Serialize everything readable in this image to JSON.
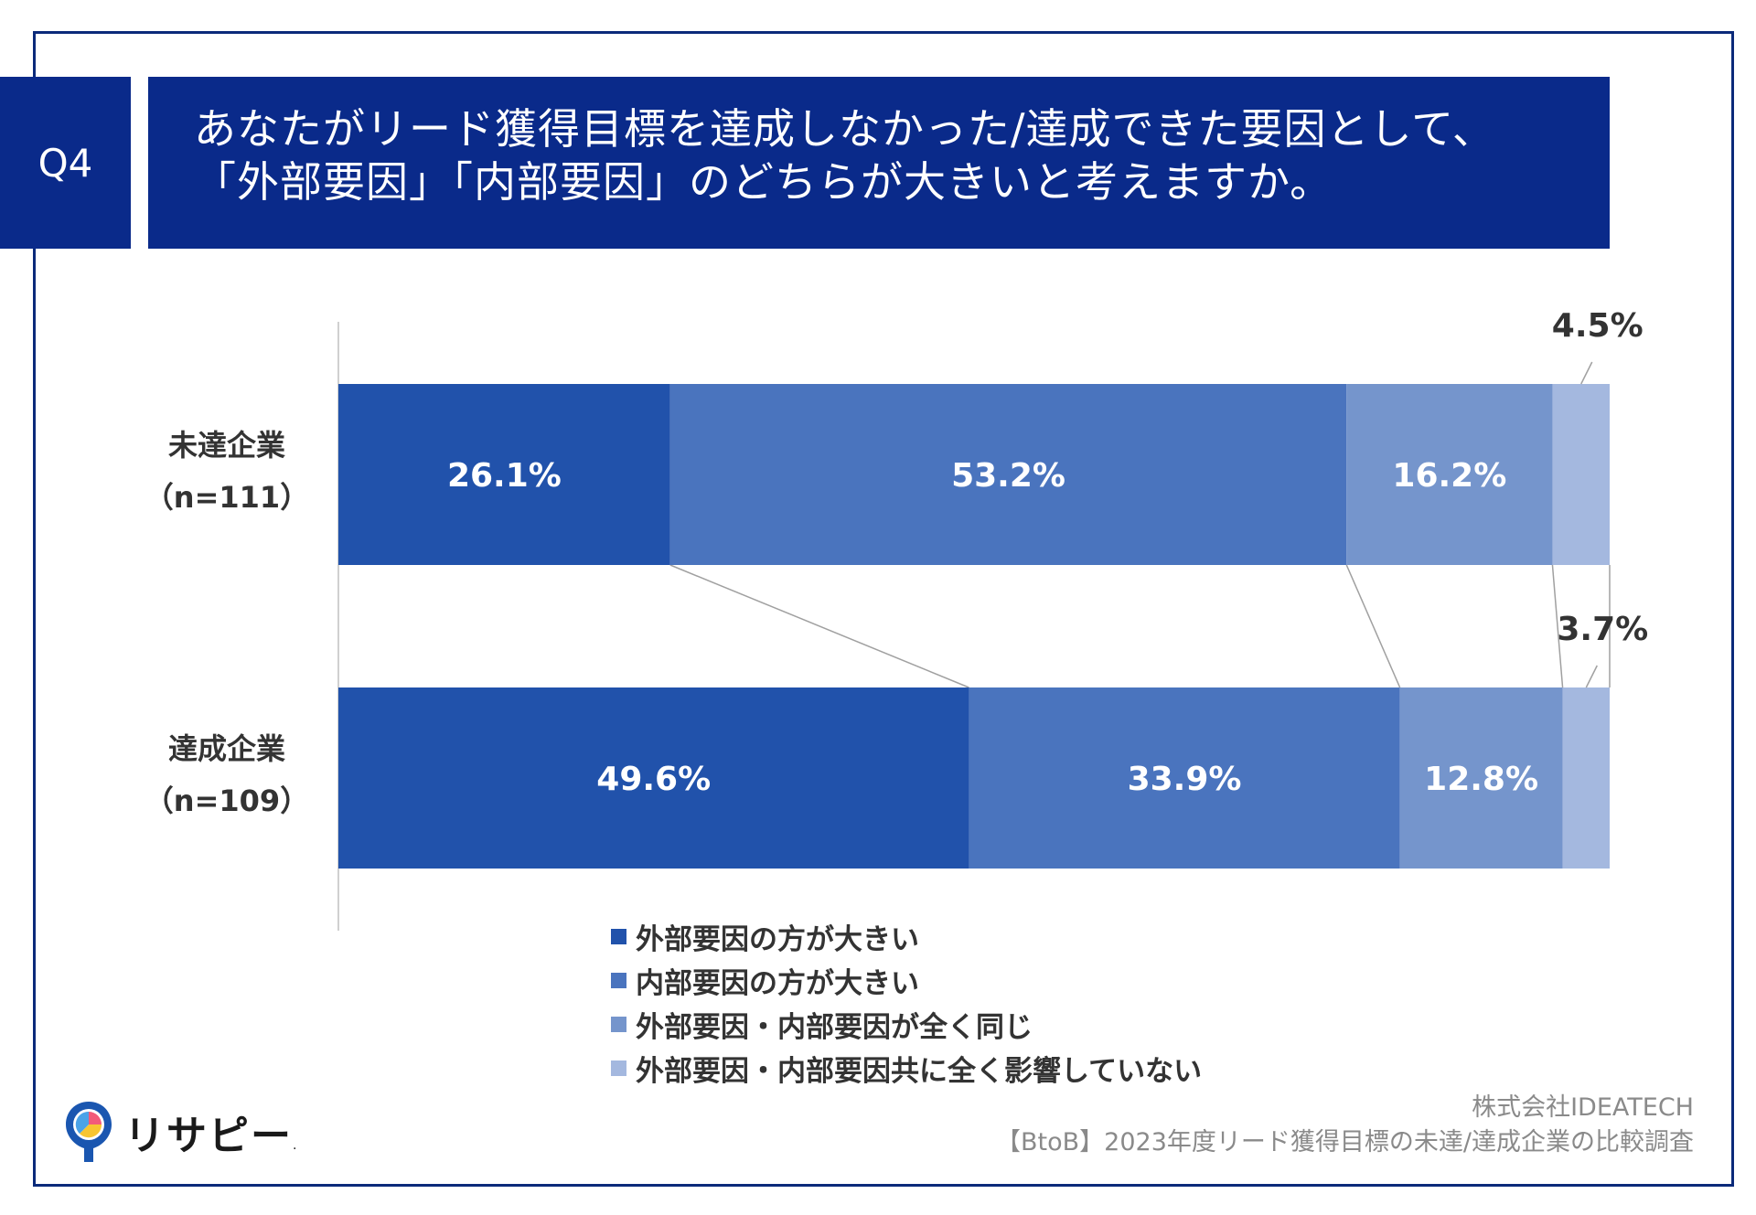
{
  "header": {
    "badge": "Q4",
    "title_line1": "あなたがリード獲得目標を達成しなかった/達成できた要因として、",
    "title_line2": "「外部要因」「内部要因」のどちらが大きいと考えますか。"
  },
  "chart_data": {
    "type": "bar",
    "orientation": "horizontal",
    "stacked": true,
    "categories": [
      {
        "name": "未達企業",
        "n": "（n=111）"
      },
      {
        "name": "達成企業",
        "n": "（n=109）"
      }
    ],
    "series": [
      {
        "name": "外部要因の方が大きい",
        "values": [
          26.1,
          49.6
        ],
        "labels": [
          "26.1%",
          "49.6%"
        ]
      },
      {
        "name": "内部要因の方が大きい",
        "values": [
          53.2,
          33.9
        ],
        "labels": [
          "53.2%",
          "33.9%"
        ]
      },
      {
        "name": "外部要因・内部要因が全く同じ",
        "values": [
          16.2,
          12.8
        ],
        "labels": [
          "16.2%",
          "12.8%"
        ]
      },
      {
        "name": "外部要因・内部要因共に全く影響していない",
        "values": [
          4.5,
          3.7
        ],
        "labels": [
          "4.5%",
          "3.7%"
        ]
      }
    ],
    "xlim": [
      0,
      100
    ],
    "colors": [
      "#2152ab",
      "#4a74be",
      "#7595cc",
      "#a4b8df"
    ]
  },
  "legend": {
    "items": [
      "外部要因の方が大きい",
      "内部要因の方が大きい",
      "外部要因・内部要因が全く同じ",
      "外部要因・内部要因共に全く影響していない"
    ]
  },
  "footer": {
    "company": "株式会社IDEATECH",
    "survey": "【BtoB】2023年度リード獲得目標の未達/達成企業の比較調査"
  },
  "logo": {
    "text": "リサピー",
    "mark": "."
  }
}
